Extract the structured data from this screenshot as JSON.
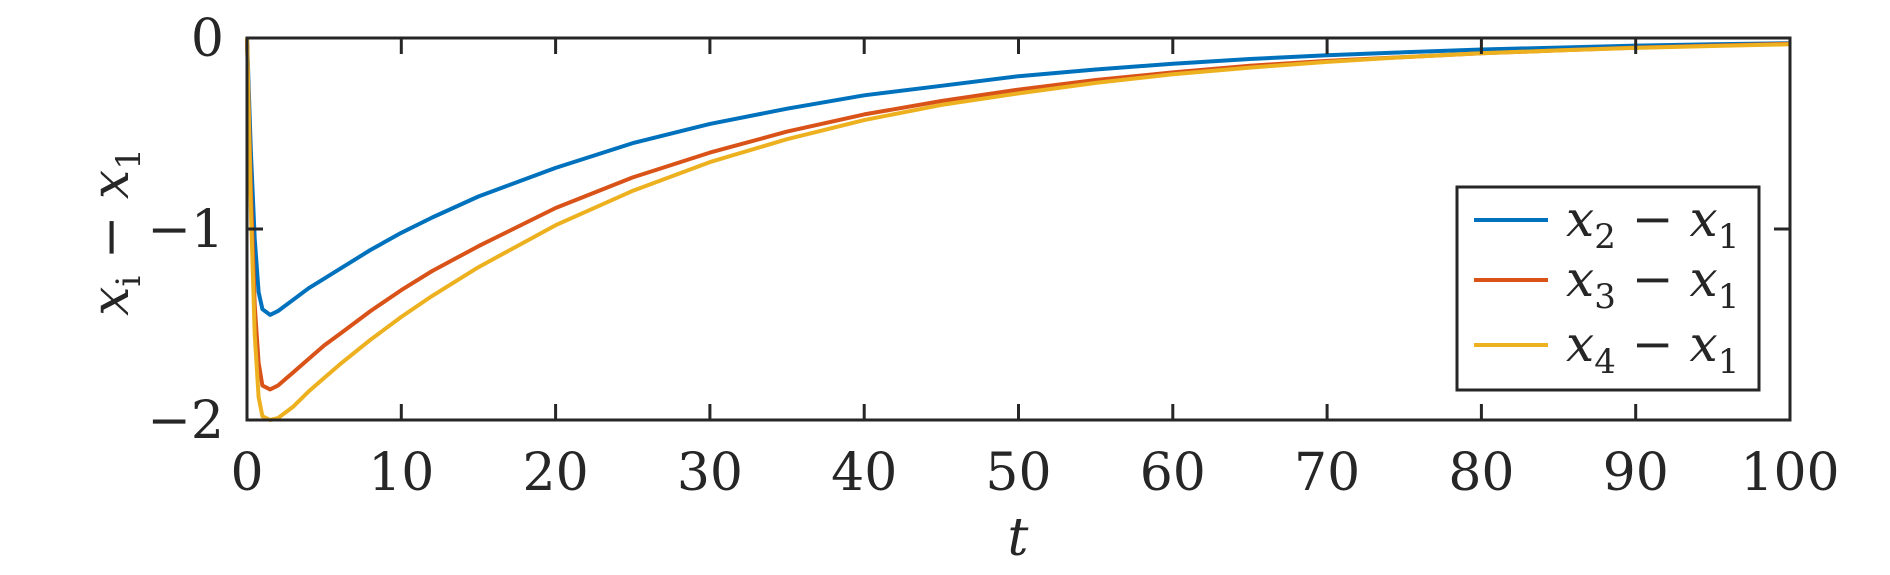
{
  "chart_data": {
    "type": "line",
    "xlabel": {
      "main": "t"
    },
    "ylabel": {
      "main": "x",
      "sub": "i",
      "op": " − ",
      "main2": "x",
      "sub2": "1"
    },
    "xlim": [
      0,
      100
    ],
    "ylim": [
      -2,
      0
    ],
    "xticks": [
      0,
      10,
      20,
      30,
      40,
      50,
      60,
      70,
      80,
      90,
      100
    ],
    "yticks": [
      0,
      -1,
      -2
    ],
    "xtick_labels": [
      "0",
      "10",
      "20",
      "30",
      "40",
      "50",
      "60",
      "70",
      "80",
      "90",
      "100"
    ],
    "ytick_labels": [
      "0",
      "−1",
      "−2"
    ],
    "legend_position": "right",
    "grid": false,
    "series": [
      {
        "name": {
          "main": "x",
          "sub": "2",
          "op": " − ",
          "main2": "x",
          "sub2": "1"
        },
        "color": "#0072BD",
        "x": [
          0,
          0.25,
          0.5,
          0.75,
          1.0,
          1.5,
          2,
          3,
          4,
          5,
          6,
          8,
          10,
          12,
          15,
          20,
          25,
          30,
          35,
          40,
          45,
          50,
          55,
          60,
          65,
          70,
          75,
          80,
          85,
          90,
          95,
          100
        ],
        "y": [
          0,
          -0.6,
          -1.05,
          -1.33,
          -1.42,
          -1.45,
          -1.43,
          -1.37,
          -1.31,
          -1.26,
          -1.21,
          -1.11,
          -1.02,
          -0.94,
          -0.83,
          -0.68,
          -0.55,
          -0.45,
          -0.37,
          -0.3,
          -0.25,
          -0.2,
          -0.165,
          -0.135,
          -0.11,
          -0.09,
          -0.075,
          -0.06,
          -0.05,
          -0.04,
          -0.033,
          -0.027
        ]
      },
      {
        "name": {
          "main": "x",
          "sub": "3",
          "op": " − ",
          "main2": "x",
          "sub2": "1"
        },
        "color": "#D95319",
        "x": [
          0,
          0.25,
          0.5,
          0.75,
          1.0,
          1.5,
          2,
          3,
          4,
          5,
          6,
          8,
          10,
          12,
          15,
          20,
          25,
          30,
          35,
          40,
          45,
          50,
          55,
          60,
          65,
          70,
          75,
          80,
          85,
          90,
          95,
          100
        ],
        "y": [
          0,
          -0.8,
          -1.4,
          -1.7,
          -1.82,
          -1.84,
          -1.82,
          -1.75,
          -1.68,
          -1.61,
          -1.55,
          -1.43,
          -1.32,
          -1.22,
          -1.09,
          -0.89,
          -0.73,
          -0.6,
          -0.49,
          -0.4,
          -0.33,
          -0.27,
          -0.22,
          -0.18,
          -0.145,
          -0.12,
          -0.1,
          -0.08,
          -0.065,
          -0.05,
          -0.04,
          -0.03
        ]
      },
      {
        "name": {
          "main": "x",
          "sub": "4",
          "op": " − ",
          "main2": "x",
          "sub2": "1"
        },
        "color": "#EDB120",
        "x": [
          0,
          0.25,
          0.5,
          0.75,
          1.0,
          1.5,
          2,
          3,
          4,
          5,
          6,
          8,
          10,
          12,
          15,
          20,
          25,
          30,
          35,
          40,
          45,
          50,
          55,
          60,
          65,
          70,
          75,
          80,
          85,
          90,
          95,
          100
        ],
        "y": [
          0,
          -0.9,
          -1.55,
          -1.88,
          -1.98,
          -2.0,
          -1.99,
          -1.93,
          -1.85,
          -1.78,
          -1.71,
          -1.58,
          -1.46,
          -1.35,
          -1.2,
          -0.98,
          -0.8,
          -0.65,
          -0.53,
          -0.43,
          -0.35,
          -0.29,
          -0.235,
          -0.19,
          -0.155,
          -0.125,
          -0.1,
          -0.08,
          -0.065,
          -0.052,
          -0.042,
          -0.033
        ]
      }
    ]
  }
}
